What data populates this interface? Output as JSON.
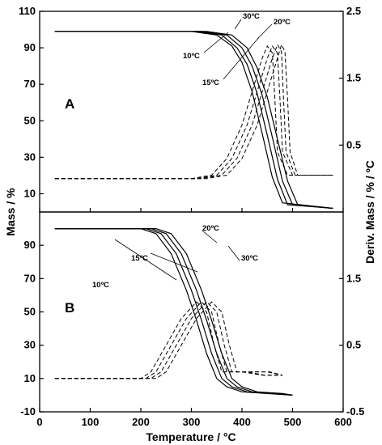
{
  "chart_data": [
    {
      "panel": "A",
      "type": "line",
      "xlabel": "Temperature / °C",
      "ylabel_left": "Mass / %",
      "ylabel_right": "Deriv. Mass / % / ºC",
      "xlim": [
        0,
        600
      ],
      "ylim_left": [
        0,
        110
      ],
      "ylim_right": [
        -0.5,
        2.5
      ],
      "x_ticks": [
        "0",
        "100",
        "200",
        "300",
        "400",
        "500",
        "600"
      ],
      "y_ticks_left": [
        "10",
        "30",
        "50",
        "70",
        "90",
        "110"
      ],
      "y_ticks_right": [
        "0.5",
        "1.5",
        "2.5"
      ],
      "tga_series": [
        {
          "name": "10ºC",
          "x": [
            30,
            250,
            300,
            350,
            380,
            400,
            420,
            440,
            460,
            480,
            580
          ],
          "y": [
            99,
            99,
            99,
            97,
            91,
            82,
            66,
            43,
            19,
            5,
            2
          ]
        },
        {
          "name": "15ºC",
          "x": [
            30,
            260,
            310,
            360,
            390,
            410,
            430,
            450,
            470,
            490,
            580
          ],
          "y": [
            99,
            99,
            99,
            97,
            90,
            81,
            65,
            42,
            18,
            4,
            2
          ]
        },
        {
          "name": "20ºC",
          "x": [
            30,
            270,
            320,
            370,
            400,
            420,
            440,
            460,
            480,
            500,
            580
          ],
          "y": [
            99,
            99,
            99,
            97,
            90,
            80,
            64,
            41,
            17,
            4,
            2
          ]
        },
        {
          "name": "30ºC",
          "x": [
            30,
            280,
            330,
            380,
            410,
            430,
            450,
            470,
            490,
            510,
            580
          ],
          "y": [
            99,
            99,
            99,
            97,
            90,
            79,
            63,
            40,
            17,
            4,
            2
          ]
        }
      ],
      "dtg_series": [
        {
          "name": "10ºC",
          "x": [
            30,
            300,
            340,
            370,
            400,
            420,
            440,
            450,
            460,
            465,
            470,
            490,
            580
          ],
          "y": [
            0.0,
            0.0,
            0.05,
            0.3,
            0.8,
            1.3,
            1.8,
            1.98,
            1.88,
            1.2,
            0.4,
            0.05,
            0.05
          ]
        },
        {
          "name": "15ºC",
          "x": [
            30,
            310,
            350,
            380,
            410,
            430,
            450,
            460,
            470,
            475,
            480,
            500,
            580
          ],
          "y": [
            0.0,
            0.0,
            0.05,
            0.3,
            0.8,
            1.3,
            1.8,
            1.98,
            1.88,
            1.2,
            0.4,
            0.05,
            0.05
          ]
        },
        {
          "name": "20ºC",
          "x": [
            30,
            320,
            360,
            390,
            420,
            440,
            460,
            470,
            478,
            482,
            487,
            505,
            580
          ],
          "y": [
            0.0,
            0.0,
            0.05,
            0.3,
            0.8,
            1.3,
            1.8,
            2.0,
            1.9,
            1.2,
            0.4,
            0.05,
            0.05
          ]
        },
        {
          "name": "30ºC",
          "x": [
            30,
            330,
            370,
            400,
            430,
            450,
            470,
            478,
            485,
            490,
            495,
            510,
            580
          ],
          "y": [
            0.0,
            0.0,
            0.05,
            0.3,
            0.8,
            1.3,
            1.8,
            2.0,
            1.9,
            1.2,
            0.4,
            0.05,
            0.05
          ]
        }
      ],
      "annotations": [
        "10ºC",
        "15ºC",
        "20ºC",
        "30ºC"
      ]
    },
    {
      "panel": "B",
      "type": "line",
      "xlabel": "Temperature / °C",
      "ylabel_left": "Mass / %",
      "ylabel_right": "Deriv. Mass / % / ºC",
      "xlim": [
        0,
        600
      ],
      "ylim_left": [
        -10,
        110
      ],
      "ylim_right": [
        -0.5,
        2.5
      ],
      "x_ticks": [
        "0",
        "100",
        "200",
        "300",
        "400",
        "500",
        "600"
      ],
      "y_ticks_left": [
        "-10",
        "10",
        "30",
        "50",
        "70",
        "90"
      ],
      "y_ticks_right": [
        "-0.5",
        "0.5",
        "1.5"
      ],
      "tga_series": [
        {
          "name": "10ºC",
          "x": [
            30,
            200,
            230,
            260,
            290,
            310,
            330,
            350,
            370,
            400,
            450,
            500
          ],
          "y": [
            100,
            100,
            97,
            85,
            63,
            45,
            25,
            10,
            5,
            2,
            1,
            0
          ]
        },
        {
          "name": "15ºC",
          "x": [
            30,
            210,
            240,
            270,
            300,
            320,
            340,
            360,
            380,
            410,
            460,
            500
          ],
          "y": [
            100,
            100,
            97,
            85,
            63,
            45,
            25,
            10,
            5,
            2,
            1,
            0
          ]
        },
        {
          "name": "20ºC",
          "x": [
            30,
            220,
            250,
            280,
            310,
            330,
            350,
            370,
            390,
            420,
            470,
            500
          ],
          "y": [
            100,
            100,
            97,
            85,
            63,
            45,
            25,
            10,
            5,
            2,
            1,
            0
          ]
        },
        {
          "name": "30ºC",
          "x": [
            30,
            230,
            260,
            290,
            320,
            340,
            360,
            380,
            400,
            430,
            480,
            500
          ],
          "y": [
            100,
            100,
            97,
            85,
            63,
            45,
            25,
            10,
            5,
            2,
            1,
            0
          ]
        }
      ],
      "dtg_series": [
        {
          "name": "10ºC",
          "x": [
            30,
            200,
            220,
            250,
            280,
            310,
            330,
            345,
            360,
            400,
            440,
            480
          ],
          "y": [
            0.0,
            0.0,
            0.1,
            0.5,
            0.9,
            1.15,
            1.0,
            0.5,
            0.1,
            0.1,
            0.05,
            0.05
          ]
        },
        {
          "name": "15ºC",
          "x": [
            30,
            210,
            230,
            260,
            290,
            320,
            340,
            355,
            370,
            410,
            445,
            480
          ],
          "y": [
            0.0,
            0.0,
            0.1,
            0.5,
            0.9,
            1.15,
            1.0,
            0.5,
            0.1,
            0.1,
            0.05,
            0.05
          ]
        },
        {
          "name": "20ºC",
          "x": [
            30,
            220,
            240,
            270,
            300,
            330,
            350,
            365,
            380,
            420,
            450,
            480
          ],
          "y": [
            0.0,
            0.0,
            0.1,
            0.5,
            0.9,
            1.15,
            1.0,
            0.5,
            0.1,
            0.1,
            0.1,
            0.05
          ]
        },
        {
          "name": "30ºC",
          "x": [
            30,
            230,
            250,
            280,
            310,
            340,
            360,
            375,
            390,
            425,
            455,
            480
          ],
          "y": [
            0.0,
            0.0,
            0.1,
            0.5,
            0.9,
            1.15,
            1.0,
            0.5,
            0.1,
            0.1,
            0.1,
            0.05
          ]
        }
      ],
      "annotations": [
        "10ºC",
        "15ºC",
        "20ºC",
        "30ºC"
      ]
    }
  ]
}
